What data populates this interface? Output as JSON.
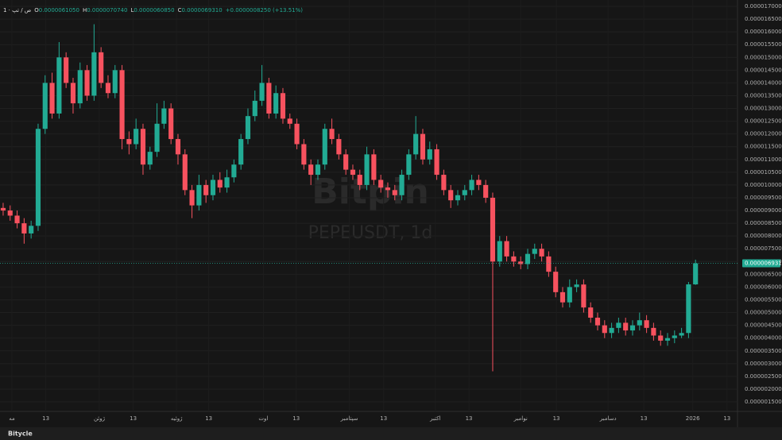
{
  "chart_data": {
    "type": "candlestick",
    "header": {
      "symbol": "1 · ص / تپ",
      "open_label": "O",
      "open_text": "0.0000061050",
      "high_label": "H",
      "high_text": "0.0000070740",
      "low_label": "L",
      "low_text": "0.0000060850",
      "close_label": "C",
      "close_text": "0.0000069310",
      "change_text": "+0.0000008250 (+13.51%)"
    },
    "watermark": "Bitpin",
    "watermark_symbol": "PEPEUSDT, 1d",
    "brand": "Bitycle",
    "last_price": {
      "value": 6.931e-06,
      "label": "0.0000069310"
    },
    "up_color": "#22ab94",
    "down_color": "#f7525f",
    "series": [
      {
        "open": [
          9.1e-06,
          9e-06,
          8.8e-06,
          8.5e-06,
          8.1e-06,
          8.4e-06,
          1.22e-05,
          1.4e-05,
          1.28e-05,
          1.5e-05,
          1.4e-05,
          1.32e-05,
          1.45e-05,
          1.35e-05,
          1.52e-05,
          1.4e-05,
          1.36e-05,
          1.45e-05,
          1.18e-05,
          1.16e-05,
          1.22e-05,
          1.08e-05,
          1.13e-05,
          1.24e-05,
          1.3e-05,
          1.18e-05,
          1.12e-05,
          9.8e-06,
          9.2e-06,
          1e-05,
          9.6e-06,
          1.02e-05,
          9.9e-06,
          1.03e-05,
          1.08e-05,
          1.18e-05,
          1.27e-05,
          1.33e-05,
          1.4e-05,
          1.28e-05,
          1.36e-05,
          1.26e-05,
          1.24e-05,
          1.16e-05,
          1.08e-05,
          1.04e-05,
          1.08e-05,
          1.22e-05,
          1.18e-05,
          1.12e-05,
          1.06e-05,
          1.04e-05,
          1e-05,
          1.12e-05,
          1.02e-05,
          9.9e-06,
          9.8e-06,
          9.6e-06,
          1.04e-05,
          1.12e-05,
          1.2e-05,
          1.1e-05,
          1.14e-05,
          1.04e-05,
          9.8e-06,
          9.4e-06,
          9.6e-06,
          9.8e-06,
          1.02e-05,
          1e-05,
          9.5e-06,
          7e-06,
          7.8e-06,
          7.2e-06,
          7e-06,
          6.9e-06,
          7.3e-06,
          7.5e-06,
          7.2e-06,
          6.6e-06,
          5.8e-06,
          5.4e-06,
          6e-06,
          6.1e-06,
          5.2e-06,
          4.8e-06,
          4.5e-06,
          4.2e-06,
          4.4e-06,
          4.6e-06,
          4.3e-06,
          4.5e-06,
          4.7e-06,
          4.4e-06,
          4.1e-06,
          3.9e-06,
          4e-06,
          4.1e-06,
          4.2e-06,
          6.105e-06
        ],
        "high": [
          9.3e-06,
          9.2e-06,
          9e-06,
          8.7e-06,
          8.6e-06,
          1.24e-05,
          1.43e-05,
          1.44e-05,
          1.56e-05,
          1.52e-05,
          1.42e-05,
          1.48e-05,
          1.47e-05,
          1.63e-05,
          1.54e-05,
          1.43e-05,
          1.47e-05,
          1.47e-05,
          1.21e-05,
          1.26e-05,
          1.24e-05,
          1.15e-05,
          1.32e-05,
          1.33e-05,
          1.32e-05,
          1.2e-05,
          1.14e-05,
          1e-05,
          1.04e-05,
          1.02e-05,
          1.04e-05,
          1.05e-05,
          1.06e-05,
          1.1e-05,
          1.2e-05,
          1.3e-05,
          1.37e-05,
          1.47e-05,
          1.42e-05,
          1.39e-05,
          1.38e-05,
          1.28e-05,
          1.26e-05,
          1.18e-05,
          1.1e-05,
          1.1e-05,
          1.24e-05,
          1.26e-05,
          1.2e-05,
          1.14e-05,
          1.08e-05,
          1.06e-05,
          1.15e-05,
          1.14e-05,
          1.04e-05,
          1.01e-05,
          1e-05,
          1.06e-05,
          1.14e-05,
          1.27e-05,
          1.22e-05,
          1.17e-05,
          1.16e-05,
          1.06e-05,
          1e-05,
          9.8e-06,
          1e-05,
          1.04e-05,
          1.04e-05,
          1.02e-05,
          9.7e-06,
          8e-06,
          8e-06,
          7.4e-06,
          7.2e-06,
          7.5e-06,
          7.7e-06,
          7.7e-06,
          7.4e-06,
          6.8e-06,
          6e-06,
          6.3e-06,
          6.3e-06,
          6.3e-06,
          5.4e-06,
          5e-06,
          4.7e-06,
          4.6e-06,
          4.8e-06,
          4.8e-06,
          4.7e-06,
          5e-06,
          4.9e-06,
          4.6e-06,
          4.3e-06,
          4.2e-06,
          4.3e-06,
          4.4e-06,
          6.2e-06,
          7.074e-06
        ],
        "low": [
          8.8e-06,
          8.6e-06,
          8.3e-06,
          7.7e-06,
          7.9e-06,
          8.2e-06,
          1.2e-05,
          1.26e-05,
          1.26e-05,
          1.38e-05,
          1.28e-05,
          1.3e-05,
          1.33e-05,
          1.33e-05,
          1.38e-05,
          1.34e-05,
          1.34e-05,
          1.14e-05,
          1.12e-05,
          1.14e-05,
          1.04e-05,
          1.06e-05,
          1.11e-05,
          1.22e-05,
          1.16e-05,
          1.08e-05,
          9.6e-06,
          8.7e-06,
          9e-06,
          9.3e-06,
          9.4e-06,
          9.7e-06,
          9.7e-06,
          1.01e-05,
          1.06e-05,
          1.16e-05,
          1.25e-05,
          1.31e-05,
          1.26e-05,
          1.26e-05,
          1.24e-05,
          1.22e-05,
          1.14e-05,
          1.06e-05,
          1e-05,
          1.02e-05,
          1.06e-05,
          1.16e-05,
          1.1e-05,
          1.04e-05,
          1.02e-05,
          9.8e-06,
          9.8e-06,
          1e-05,
          9.7e-06,
          9.5e-06,
          9.4e-06,
          9.4e-06,
          1.02e-05,
          1.1e-05,
          1.08e-05,
          1.08e-05,
          1.02e-05,
          9.6e-06,
          9.1e-06,
          9.2e-06,
          9.4e-06,
          9.6e-06,
          9.8e-06,
          9.3e-06,
          2.7e-06,
          6.8e-06,
          7e-06,
          6.8e-06,
          6.7e-06,
          6.7e-06,
          7.1e-06,
          7e-06,
          6.4e-06,
          5.6e-06,
          5.2e-06,
          5.2e-06,
          5.8e-06,
          5e-06,
          4.6e-06,
          4.3e-06,
          4e-06,
          4e-06,
          4.2e-06,
          4.1e-06,
          4.1e-06,
          4.3e-06,
          4.2e-06,
          3.9e-06,
          3.7e-06,
          3.7e-06,
          3.8e-06,
          4e-06,
          4e-06,
          6.085e-06
        ],
        "close": [
          9e-06,
          8.8e-06,
          8.5e-06,
          8.1e-06,
          8.4e-06,
          1.22e-05,
          1.4e-05,
          1.28e-05,
          1.5e-05,
          1.4e-05,
          1.32e-05,
          1.45e-05,
          1.35e-05,
          1.52e-05,
          1.4e-05,
          1.36e-05,
          1.45e-05,
          1.18e-05,
          1.16e-05,
          1.22e-05,
          1.08e-05,
          1.13e-05,
          1.24e-05,
          1.3e-05,
          1.18e-05,
          1.12e-05,
          9.8e-06,
          9.2e-06,
          1e-05,
          9.6e-06,
          1.02e-05,
          9.9e-06,
          1.03e-05,
          1.08e-05,
          1.18e-05,
          1.27e-05,
          1.33e-05,
          1.4e-05,
          1.28e-05,
          1.36e-05,
          1.26e-05,
          1.24e-05,
          1.16e-05,
          1.08e-05,
          1.04e-05,
          1.08e-05,
          1.22e-05,
          1.18e-05,
          1.12e-05,
          1.06e-05,
          1.04e-05,
          1e-05,
          1.12e-05,
          1.02e-05,
          9.9e-06,
          9.8e-06,
          9.6e-06,
          1.04e-05,
          1.12e-05,
          1.2e-05,
          1.1e-05,
          1.14e-05,
          1.04e-05,
          9.8e-06,
          9.4e-06,
          9.6e-06,
          9.8e-06,
          1.02e-05,
          1e-05,
          9.5e-06,
          7e-06,
          7.8e-06,
          7.2e-06,
          7e-06,
          6.9e-06,
          7.3e-06,
          7.5e-06,
          7.2e-06,
          6.6e-06,
          5.8e-06,
          5.4e-06,
          6e-06,
          6.1e-06,
          5.2e-06,
          4.8e-06,
          4.5e-06,
          4.2e-06,
          4.4e-06,
          4.6e-06,
          4.3e-06,
          4.5e-06,
          4.7e-06,
          4.4e-06,
          4.1e-06,
          3.9e-06,
          4e-06,
          4.1e-06,
          4.2e-06,
          6.105e-06,
          6.931e-06
        ]
      }
    ],
    "xlim": [
      -0.45,
      105
    ],
    "xticks": [
      {
        "value": 1.25,
        "label": "مه"
      },
      {
        "value": 6.1,
        "label": "13"
      },
      {
        "value": 13.75,
        "label": "ژوئن"
      },
      {
        "value": 18.6,
        "label": "13"
      },
      {
        "value": 24.8,
        "label": "ژوئیه"
      },
      {
        "value": 29.4,
        "label": "13"
      },
      {
        "value": 37.2,
        "label": "اوت"
      },
      {
        "value": 41.9,
        "label": "13"
      },
      {
        "value": 49.5,
        "label": "سپتامبر"
      },
      {
        "value": 54.4,
        "label": "13"
      },
      {
        "value": 61.8,
        "label": "اکتبر"
      },
      {
        "value": 66.6,
        "label": "13"
      },
      {
        "value": 74,
        "label": "نوامبر"
      },
      {
        "value": 79.1,
        "label": "13"
      },
      {
        "value": 86.5,
        "label": "دسامبر"
      },
      {
        "value": 91.6,
        "label": "13"
      },
      {
        "value": 98.6,
        "label": "2026"
      },
      {
        "value": 103.5,
        "label": "13"
      }
    ],
    "ylim": [
      1.127e-06,
      1.7249e-05
    ],
    "yticks": [
      {
        "value": 1.5e-06,
        "label": "0.0000015000"
      },
      {
        "value": 2e-06,
        "label": "0.0000020000"
      },
      {
        "value": 2.5e-06,
        "label": "0.0000025000"
      },
      {
        "value": 3e-06,
        "label": "0.0000030000"
      },
      {
        "value": 3.5e-06,
        "label": "0.0000035000"
      },
      {
        "value": 4e-06,
        "label": "0.0000040000"
      },
      {
        "value": 4.5e-06,
        "label": "0.0000045000"
      },
      {
        "value": 5e-06,
        "label": "0.0000050000"
      },
      {
        "value": 5.5e-06,
        "label": "0.0000055000"
      },
      {
        "value": 6e-06,
        "label": "0.0000060000"
      },
      {
        "value": 6.5e-06,
        "label": "0.0000065000"
      },
      {
        "value": 7e-06,
        "label": "0.0000070000"
      },
      {
        "value": 7.5e-06,
        "label": "0.0000075000"
      },
      {
        "value": 8e-06,
        "label": "0.0000080000"
      },
      {
        "value": 8.5e-06,
        "label": "0.0000085000"
      },
      {
        "value": 9e-06,
        "label": "0.0000090000"
      },
      {
        "value": 9.5e-06,
        "label": "0.0000095000"
      },
      {
        "value": 1e-05,
        "label": "0.0000100000"
      },
      {
        "value": 1.05e-05,
        "label": "0.0000105000"
      },
      {
        "value": 1.1e-05,
        "label": "0.0000110000"
      },
      {
        "value": 1.15e-05,
        "label": "0.0000115000"
      },
      {
        "value": 1.2e-05,
        "label": "0.0000120000"
      },
      {
        "value": 1.25e-05,
        "label": "0.0000125000"
      },
      {
        "value": 1.3e-05,
        "label": "0.0000130000"
      },
      {
        "value": 1.35e-05,
        "label": "0.0000135000"
      },
      {
        "value": 1.4e-05,
        "label": "0.0000140000"
      },
      {
        "value": 1.45e-05,
        "label": "0.0000145000"
      },
      {
        "value": 1.5e-05,
        "label": "0.0000150000"
      },
      {
        "value": 1.55e-05,
        "label": "0.0000155000"
      },
      {
        "value": 1.6e-05,
        "label": "0.0000160000"
      },
      {
        "value": 1.65e-05,
        "label": "0.0000165000"
      },
      {
        "value": 1.7e-05,
        "label": "0.0000170000"
      }
    ],
    "grid": true
  }
}
